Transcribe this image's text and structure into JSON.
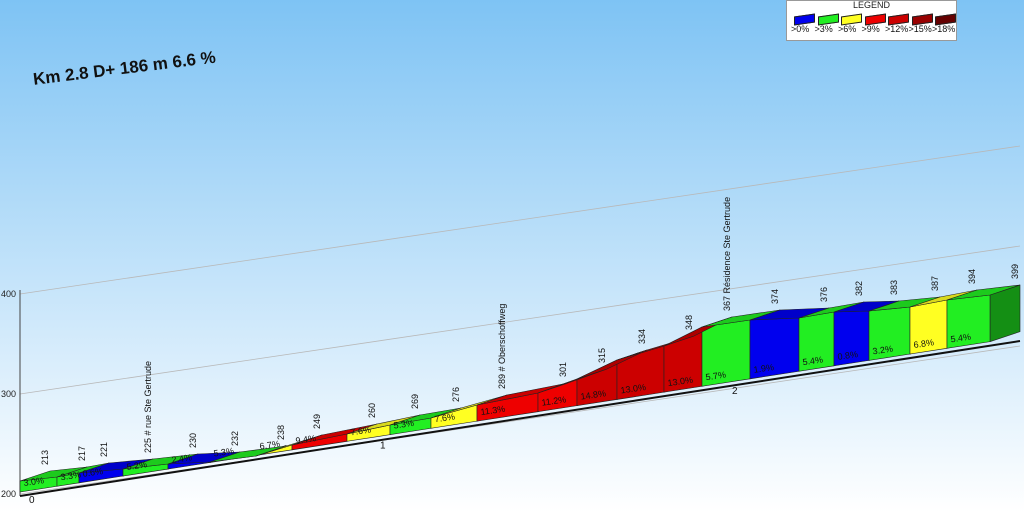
{
  "title": "Km 2.8 D+ 186 m 6.6 %",
  "legend": {
    "title": "LEGEND",
    "items": [
      {
        "label": ">0%",
        "color": "#0000ee"
      },
      {
        "label": ">3%",
        "color": "#22ee22"
      },
      {
        "label": ">6%",
        "color": "#ffff22"
      },
      {
        "label": ">9%",
        "color": "#ee0000"
      },
      {
        "label": ">12%",
        "color": "#cc0000"
      },
      {
        "label": ">15%",
        "color": "#990000"
      },
      {
        "label": ">18%",
        "color": "#660000"
      }
    ]
  },
  "chart_data": {
    "type": "area",
    "xlabel": "",
    "ylabel": "",
    "ylim": [
      200,
      400
    ],
    "y_ticks": [
      "200",
      "300",
      "400"
    ],
    "x_ticks": [
      "0",
      "1",
      "2"
    ],
    "grid": true,
    "legend_position": "top-right",
    "altitudes": [
      "213",
      "217",
      "221",
      "225",
      "230",
      "232",
      "238",
      "249",
      "260",
      "269",
      "276",
      "289",
      "301",
      "315",
      "334",
      "348",
      "367",
      "374",
      "376",
      "382",
      "383",
      "387",
      "394",
      "399"
    ],
    "place_labels": [
      {
        "index": 3,
        "text": "# rue Ste Gertrude"
      },
      {
        "index": 11,
        "text": "# Oberschoffweg"
      },
      {
        "index": 16,
        "text": "Résidence Ste Gertrude"
      }
    ],
    "segments": [
      {
        "grade": 3.0,
        "label": "3.0%",
        "color": "#22ee22"
      },
      {
        "grade": 3.3,
        "label": "3.3%",
        "color": "#22ee22"
      },
      {
        "grade": 0.6,
        "label": "0.6%",
        "color": "#0000ee"
      },
      {
        "grade": 5.2,
        "label": "5.2%",
        "color": "#22ee22"
      },
      {
        "grade": 2.4,
        "label": "2.4%",
        "color": "#0000ee"
      },
      {
        "grade": 5.3,
        "label": "5.3%",
        "color": "#22ee22"
      },
      {
        "grade": 6.7,
        "label": "6.7%",
        "color": "#ffff22"
      },
      {
        "grade": 9.4,
        "label": "9.4%",
        "color": "#ee0000"
      },
      {
        "grade": 7.6,
        "label": "7.6%",
        "color": "#ffff22"
      },
      {
        "grade": 5.3,
        "label": "5.3%",
        "color": "#22ee22"
      },
      {
        "grade": 7.6,
        "label": "7.6%",
        "color": "#ffff22"
      },
      {
        "grade": 11.3,
        "label": "11.3%",
        "color": "#ee0000"
      },
      {
        "grade": 11.2,
        "label": "11.2%",
        "color": "#ee0000"
      },
      {
        "grade": 14.8,
        "label": "14.8%",
        "color": "#cc0000"
      },
      {
        "grade": 13.0,
        "label": "13.0%",
        "color": "#cc0000"
      },
      {
        "grade": 13.0,
        "label": "13.0%",
        "color": "#cc0000"
      },
      {
        "grade": 5.7,
        "label": "5.7%",
        "color": "#22ee22"
      },
      {
        "grade": 1.9,
        "label": "1.9%",
        "color": "#0000ee"
      },
      {
        "grade": 5.4,
        "label": "5.4%",
        "color": "#22ee22"
      },
      {
        "grade": 0.8,
        "label": "0.8%",
        "color": "#0000ee"
      },
      {
        "grade": 3.2,
        "label": "3.2%",
        "color": "#22ee22"
      },
      {
        "grade": 6.8,
        "label": "6.8%",
        "color": "#ffff22"
      },
      {
        "grade": 5.4,
        "label": "5.4%",
        "color": "#22ee22"
      }
    ]
  }
}
